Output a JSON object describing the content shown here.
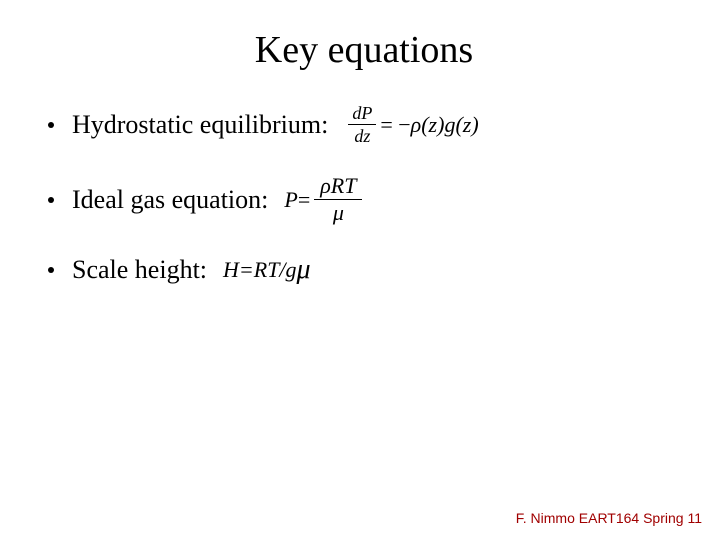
{
  "title": "Key equations",
  "bullets": {
    "hydrostatic": {
      "label": "Hydrostatic equilibrium:",
      "eq": {
        "lhs_num": "dP",
        "lhs_den": "dz",
        "rhs_prefix": " = −",
        "rho": "ρ",
        "z1": "(z)",
        "g": "g",
        "z2": "(z)"
      }
    },
    "idealgas": {
      "label": "Ideal gas equation:",
      "eq": {
        "P": "P",
        "eq": " = ",
        "num": "ρRT",
        "den": "μ"
      }
    },
    "scaleheight": {
      "label": "Scale height:",
      "eq_text": "H=RT/g",
      "mu": "μ"
    }
  },
  "footer": "F. Nimmo EART164 Spring 11",
  "colors": {
    "text": "#000000",
    "footer": "#a00000",
    "background": "#ffffff"
  },
  "fonts": {
    "title_size_pt": 38,
    "body_size_pt": 26,
    "eqn_size_pt": 22,
    "footer_size_pt": 14
  }
}
